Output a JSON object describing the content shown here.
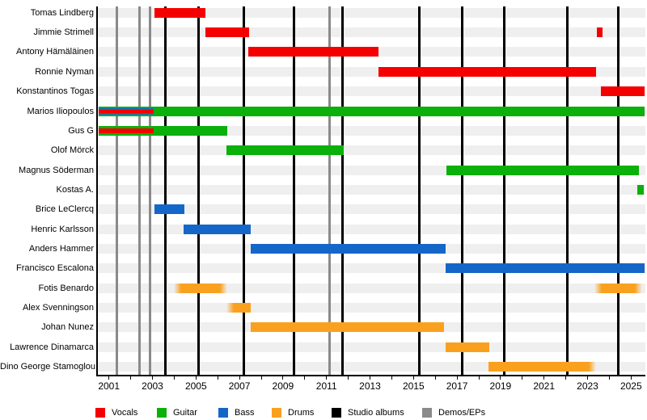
{
  "chart_data": {
    "type": "timeline",
    "description": "Band members timeline (Gantt-style) with vertical release markers",
    "x_axis": {
      "unit": "year",
      "range": [
        2000.53,
        2025.65
      ],
      "tick_every": 1,
      "label_every": 2,
      "tick_labels": [
        "2001",
        "2003",
        "2005",
        "2007",
        "2009",
        "2011",
        "2013",
        "2015",
        "2017",
        "2019",
        "2021",
        "2023",
        "2025"
      ]
    },
    "roles": {
      "vocals": "#f40000",
      "guitar": "#0bb00b",
      "bass": "#1467c8",
      "drums": "#f9a11f"
    },
    "grid_colors": {
      "studio_albums": "#000000",
      "demos_eps": "#8a8a8a",
      "row_track": "#efefef"
    },
    "members": [
      {
        "name": "Tomas Lindberg",
        "segments": [
          {
            "role": "vocals",
            "start": 2003.1,
            "end": 2005.45
          }
        ]
      },
      {
        "name": "Jimmie Strimell",
        "segments": [
          {
            "role": "vocals",
            "start": 2005.45,
            "end": 2007.45
          },
          {
            "role": "vocals",
            "start": 2023.42,
            "end": 2023.7
          }
        ]
      },
      {
        "name": "Antony Hämäläinen",
        "segments": [
          {
            "role": "vocals",
            "start": 2007.42,
            "end": 2013.4
          }
        ]
      },
      {
        "name": "Ronnie Nyman",
        "segments": [
          {
            "role": "vocals",
            "start": 2013.4,
            "end": 2023.4
          }
        ]
      },
      {
        "name": "Konstantinos Togas",
        "segments": [
          {
            "role": "vocals",
            "start": 2023.6,
            "end": 2025.65
          }
        ]
      },
      {
        "name": "Marios Iliopoulos",
        "segments": [
          {
            "role": "guitar",
            "start": 2000.53,
            "end": 2025.65
          },
          {
            "role": "bass",
            "start": 2000.53,
            "end": 2003.06,
            "inset": 2
          },
          {
            "role": "vocals",
            "start": 2000.53,
            "end": 2003.06,
            "inset": 4
          }
        ]
      },
      {
        "name": "Gus G",
        "segments": [
          {
            "role": "guitar",
            "start": 2000.53,
            "end": 2006.45
          },
          {
            "role": "vocals",
            "start": 2000.53,
            "end": 2003.06,
            "inset": 3
          }
        ]
      },
      {
        "name": "Olof Mörck",
        "segments": [
          {
            "role": "guitar",
            "start": 2006.4,
            "end": 2011.8
          }
        ]
      },
      {
        "name": "Magnus Söderman",
        "segments": [
          {
            "role": "guitar",
            "start": 2016.5,
            "end": 2025.35
          }
        ]
      },
      {
        "name": "Kostas A.",
        "segments": [
          {
            "role": "guitar",
            "start": 2025.3,
            "end": 2025.58
          }
        ]
      },
      {
        "name": "Brice LeClercq",
        "segments": [
          {
            "role": "bass",
            "start": 2003.1,
            "end": 2004.45
          }
        ]
      },
      {
        "name": "Henric Karlsson",
        "segments": [
          {
            "role": "bass",
            "start": 2004.42,
            "end": 2007.5
          }
        ]
      },
      {
        "name": "Anders Hammer",
        "segments": [
          {
            "role": "bass",
            "start": 2007.5,
            "end": 2016.48
          }
        ]
      },
      {
        "name": "Francisco Escalona",
        "segments": [
          {
            "role": "bass",
            "start": 2016.48,
            "end": 2025.65
          }
        ]
      },
      {
        "name": "Fotis Benardo",
        "segments": [
          {
            "role": "drums",
            "start": 2004.0,
            "end": 2006.45,
            "fuzzy_start": true,
            "fuzzy_end": true
          },
          {
            "role": "drums",
            "start": 2023.32,
            "end": 2025.5,
            "fuzzy_start": true,
            "fuzzy_end": true
          }
        ]
      },
      {
        "name": "Alex Svenningson",
        "segments": [
          {
            "role": "drums",
            "start": 2006.4,
            "end": 2007.5,
            "fuzzy_start": true
          }
        ]
      },
      {
        "name": "Johan Nunez",
        "segments": [
          {
            "role": "drums",
            "start": 2007.52,
            "end": 2016.4
          }
        ]
      },
      {
        "name": "Lawrence Dinamarca",
        "segments": [
          {
            "role": "drums",
            "start": 2016.47,
            "end": 2018.48
          }
        ]
      },
      {
        "name": "Dino George Stamoglou",
        "segments": [
          {
            "role": "drums",
            "start": 2018.46,
            "end": 2023.38,
            "fuzzy_end": true
          }
        ]
      }
    ],
    "releases": {
      "studio_albums": [
        2003.6,
        2005.12,
        2007.2,
        2009.5,
        2011.73,
        2015.27,
        2017.22,
        2019.18,
        2022.07,
        2024.4
      ],
      "demos_eps": [
        2001.35,
        2002.42,
        2002.87,
        2011.15
      ]
    },
    "legend": [
      {
        "label": "Vocals",
        "color": "#f40000"
      },
      {
        "label": "Guitar",
        "color": "#0bb00b"
      },
      {
        "label": "Bass",
        "color": "#1467c8"
      },
      {
        "label": "Drums",
        "color": "#f9a11f"
      },
      {
        "label": "Studio albums",
        "color": "#000000"
      },
      {
        "label": "Demos/EPs",
        "color": "#8a8a8a"
      }
    ]
  }
}
